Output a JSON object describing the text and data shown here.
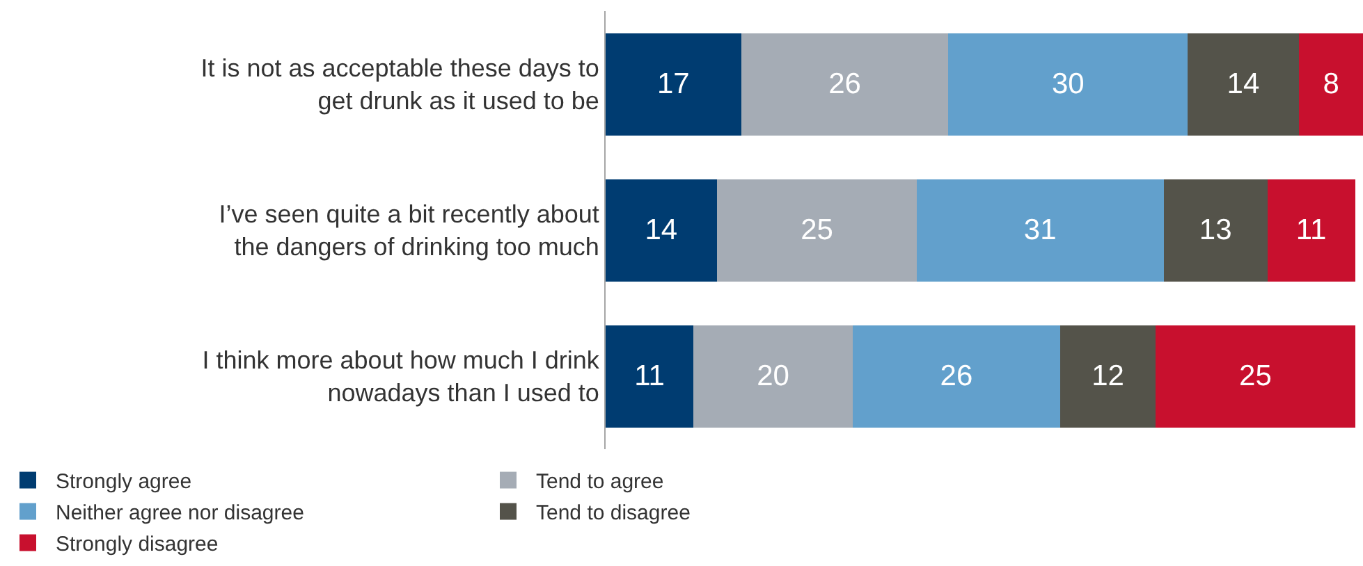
{
  "chart_data": {
    "type": "bar",
    "orientation": "horizontal",
    "stacked": true,
    "data_labels": true,
    "tick_labels": "y",
    "legend": "bottom left",
    "grid": false,
    "categories": [
      "It is not as acceptable these days to get drunk as it used to be",
      "I’ve seen quite a bit recently about the dangers of drinking too much",
      "I think more about how much I drink nowadays than I used to"
    ],
    "xlim": [
      0,
      95
    ],
    "series": [
      {
        "name": "Strongly agree",
        "color": "#003c71",
        "values": [
          17,
          14,
          11
        ]
      },
      {
        "name": "Tend to agree",
        "color": "#a5acb5",
        "values": [
          26,
          25,
          20
        ]
      },
      {
        "name": "Neither agree nor disagree",
        "color": "#62a0cc",
        "values": [
          30,
          31,
          26
        ]
      },
      {
        "name": "Tend to disagree",
        "color": "#54534a",
        "values": [
          14,
          13,
          12
        ]
      },
      {
        "name": "Strongly disagree",
        "color": "#c8102e",
        "values": [
          8,
          11,
          25
        ]
      }
    ]
  }
}
